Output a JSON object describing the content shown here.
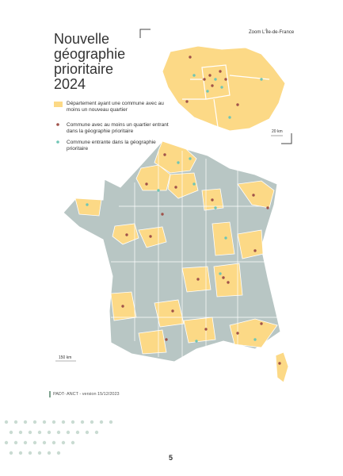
{
  "header": {
    "title_lines": [
      "Nouvelle",
      "géographie",
      "prioritaire",
      "2024"
    ]
  },
  "legend": {
    "items": [
      {
        "label": "Département ayant une commune avec au moins un nouveau quartier"
      },
      {
        "label": "Commune avec au moins un quartier entrant dans la géographie prioritaire"
      },
      {
        "label": "Commune entrante dans la géographie prioritaire"
      }
    ]
  },
  "zoom": {
    "label": "Zoom L'Île-de-France",
    "scale": "20 km"
  },
  "map": {
    "scale": "150 km"
  },
  "footer": {
    "source": "PADT- ANCT - version 15/12/2023",
    "page_number": "5"
  }
}
